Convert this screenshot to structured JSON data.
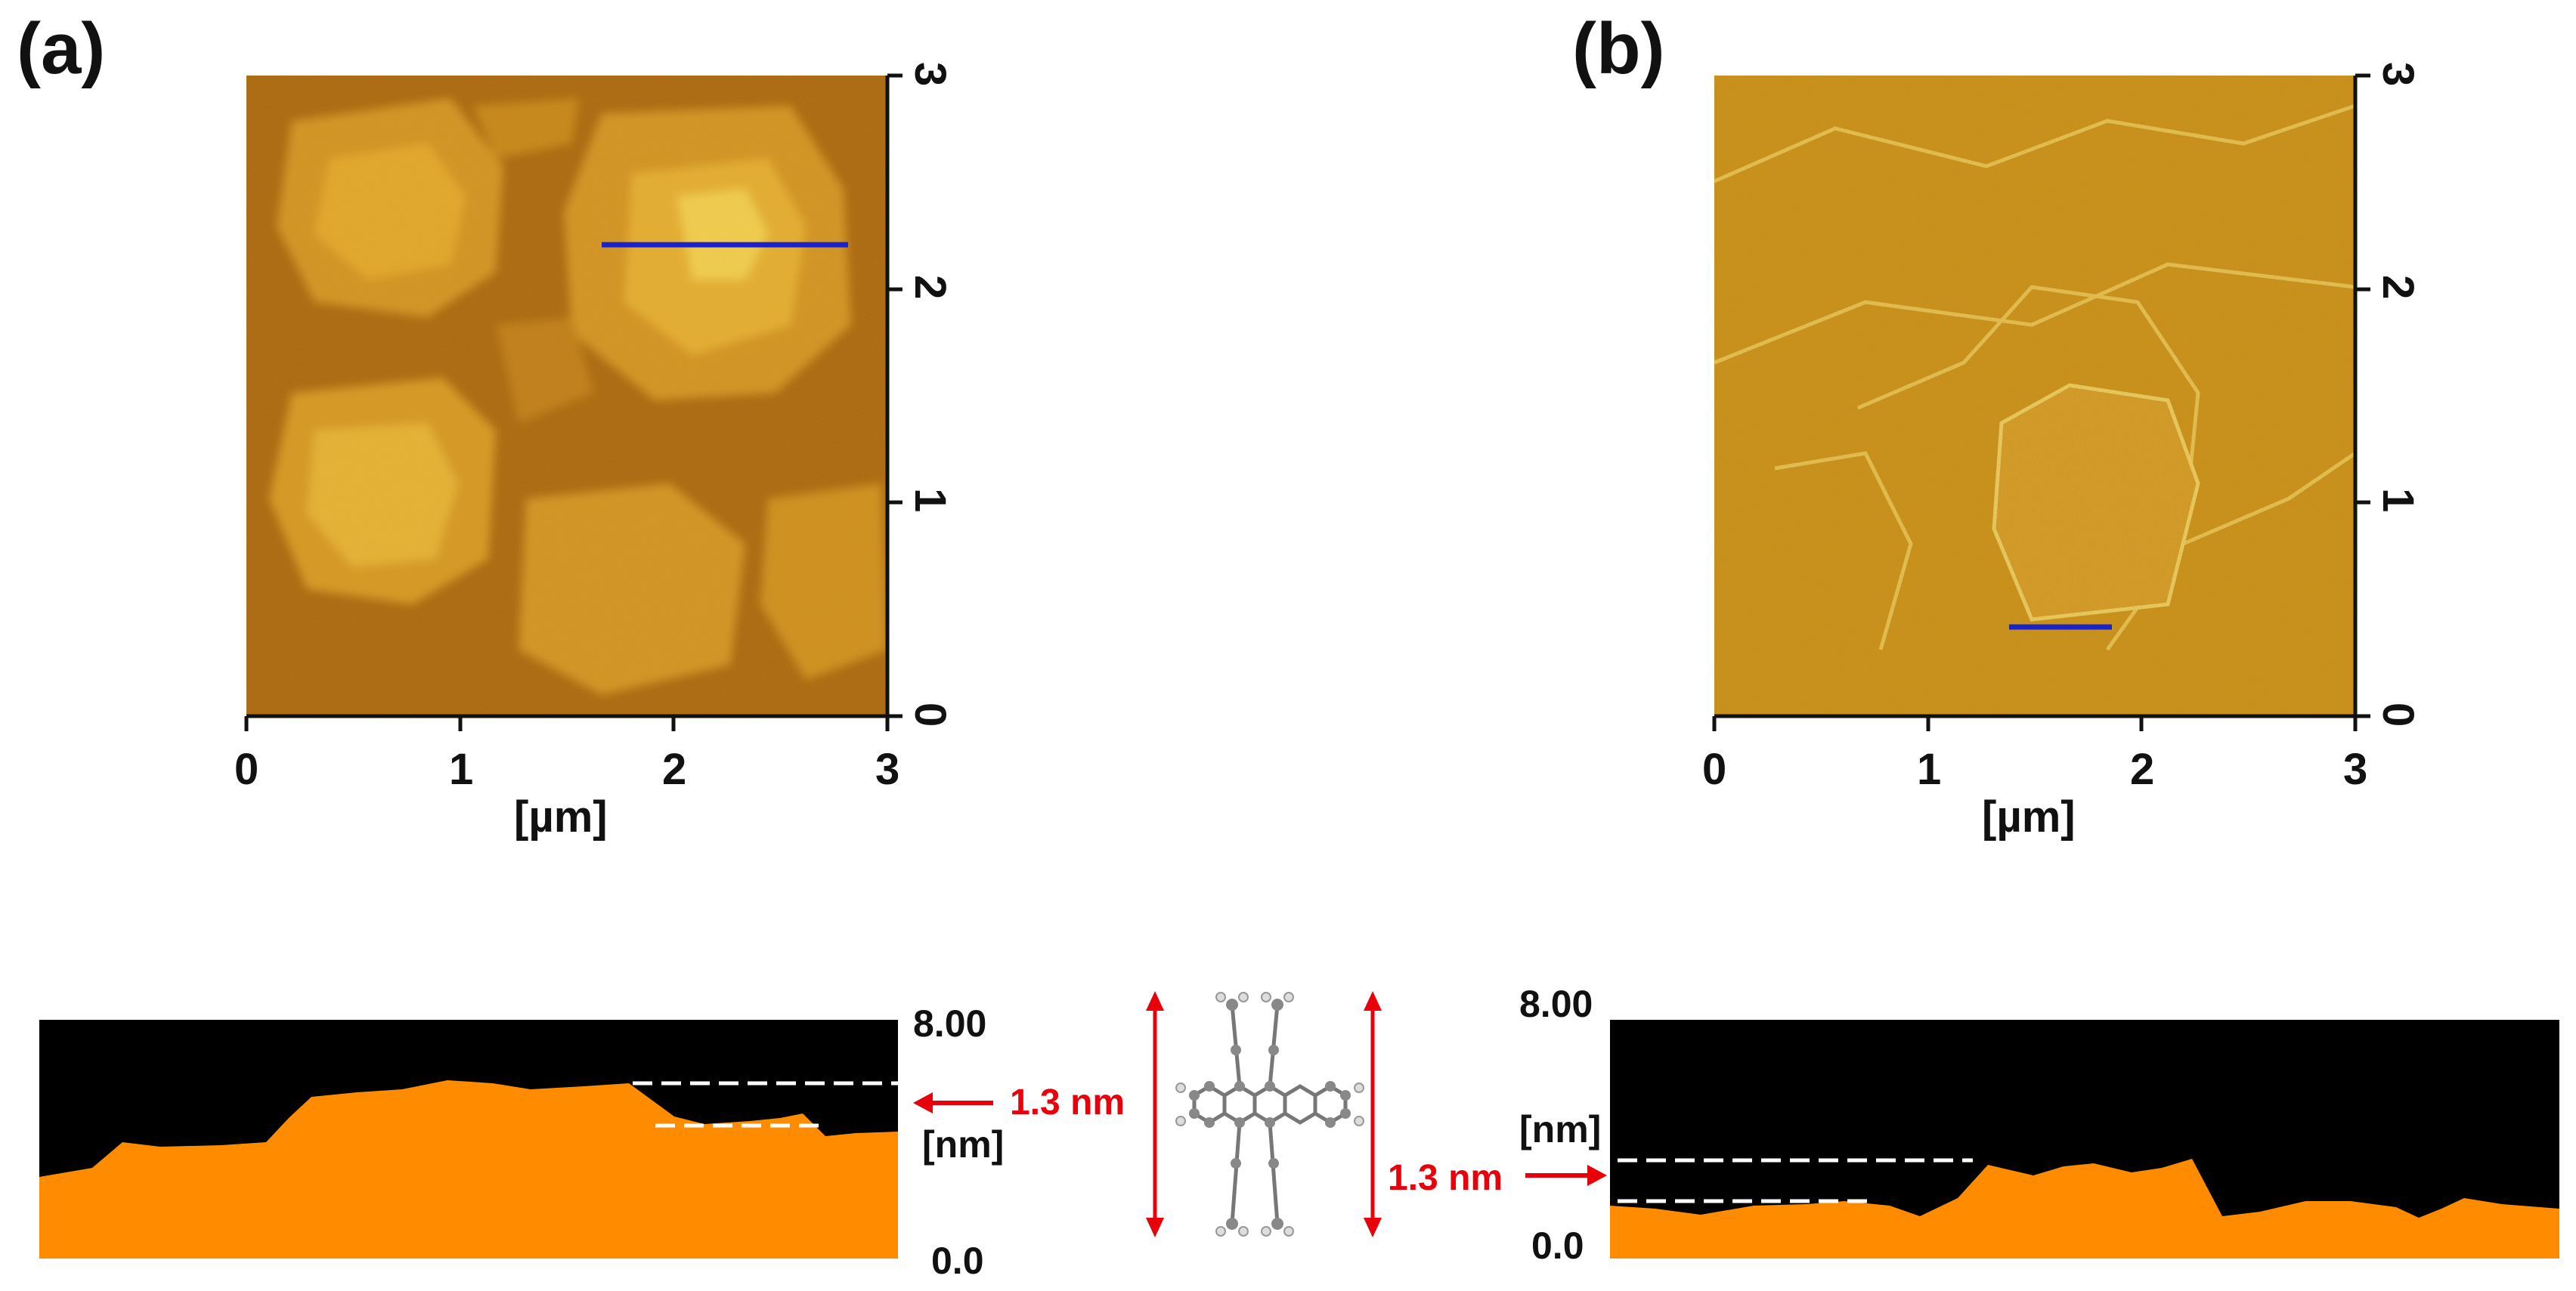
{
  "panels": {
    "a": {
      "label": "(a)",
      "x_ticks": [
        "0",
        "1",
        "2",
        "3"
      ],
      "y_ticks": [
        "0",
        "1",
        "2",
        "3"
      ],
      "x_axis_title": "[µm]",
      "scale_max_um": 3
    },
    "b": {
      "label": "(b)",
      "x_ticks": [
        "0",
        "1",
        "2",
        "3"
      ],
      "y_ticks": [
        "0",
        "1",
        "2",
        "3"
      ],
      "x_axis_title": "[µm]",
      "scale_max_um": 3
    }
  },
  "profiles": {
    "a": {
      "y_max": "8.00",
      "y_min": "0.0",
      "unit": "[nm]",
      "step_note": "1.3 nm"
    },
    "b": {
      "y_max": "8.00",
      "y_min": "0.0",
      "unit": "[nm]",
      "step_note": "1.3 nm"
    }
  },
  "colors": {
    "afm_dark": "#8a4a08",
    "afm_mid": "#c98a1a",
    "afm_light": "#f2c84a",
    "profile_fill": "#ff8c00",
    "profile_bg": "#000000",
    "scan_line": "#1a22c8",
    "annotation": "#e8000a"
  },
  "molecule_icon": "tips-pentacene-molecule-icon"
}
